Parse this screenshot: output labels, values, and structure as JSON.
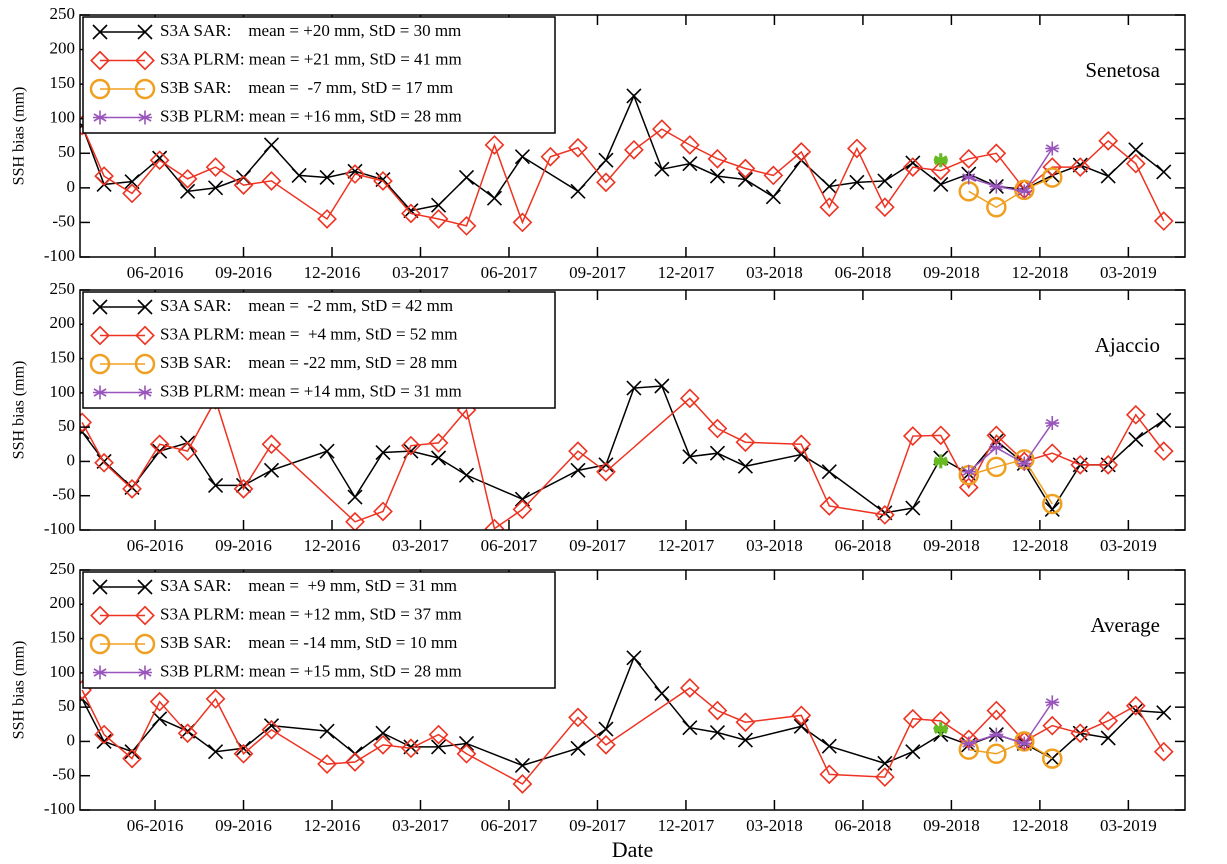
{
  "chart_data": [
    {
      "type": "line",
      "title": "Senetosa",
      "ylabel": "SSH bias (mm)",
      "xlim": [
        2016.205,
        2019.327
      ],
      "ylim": [
        -100,
        250
      ],
      "xticks": [
        {
          "value": 2016.417,
          "label": "06-2016"
        },
        {
          "value": 2016.667,
          "label": "09-2016"
        },
        {
          "value": 2016.917,
          "label": "12-2016"
        },
        {
          "value": 2017.167,
          "label": "03-2017"
        },
        {
          "value": 2017.417,
          "label": "06-2017"
        },
        {
          "value": 2017.667,
          "label": "09-2017"
        },
        {
          "value": 2017.917,
          "label": "12-2017"
        },
        {
          "value": 2018.167,
          "label": "03-2018"
        },
        {
          "value": 2018.417,
          "label": "06-2018"
        },
        {
          "value": 2018.667,
          "label": "09-2018"
        },
        {
          "value": 2018.917,
          "label": "12-2018"
        },
        {
          "value": 2019.167,
          "label": "03-2019"
        }
      ],
      "yticks": [
        -100,
        -50,
        0,
        50,
        100,
        150,
        200,
        250
      ],
      "series": [
        {
          "name": "S3A SAR:    mean = +20 mm, StD = 30 mm",
          "color": "#000000",
          "marker": "cross",
          "x": [
            2016.211,
            2016.273,
            2016.352,
            2016.43,
            2016.509,
            2016.588,
            2016.667,
            2016.746,
            2016.824,
            2016.903,
            2016.982,
            2017.061,
            2017.14,
            2017.218,
            2017.297,
            2017.376,
            2017.455,
            2017.612,
            2017.691,
            2017.77,
            2017.849,
            2017.928,
            2018.006,
            2018.085,
            2018.164,
            2018.243,
            2018.322,
            2018.4,
            2018.479,
            2018.558,
            2018.637,
            2018.716,
            2018.794,
            2018.873,
            2018.952,
            2019.031,
            2019.11,
            2019.188,
            2019.267
          ],
          "values": [
            90,
            5,
            9,
            43,
            -5,
            0,
            15,
            62,
            18,
            15,
            24,
            12,
            -33,
            -25,
            15,
            -15,
            45,
            -5,
            40,
            133,
            27,
            35,
            17,
            12,
            -13,
            40,
            2,
            8,
            10,
            36,
            5,
            20,
            2,
            -2,
            18,
            33,
            17,
            55,
            23
          ]
        },
        {
          "name": "S3A PLRM: mean = +21 mm, StD = 41 mm",
          "color": "#ee3322",
          "marker": "diamond",
          "x": [
            2016.211,
            2016.273,
            2016.352,
            2016.43,
            2016.509,
            2016.588,
            2016.667,
            2016.746,
            2016.903,
            2016.982,
            2017.061,
            2017.14,
            2017.218,
            2017.297,
            2017.376,
            2017.455,
            2017.534,
            2017.612,
            2017.691,
            2017.77,
            2017.849,
            2017.928,
            2018.006,
            2018.085,
            2018.164,
            2018.243,
            2018.322,
            2018.4,
            2018.479,
            2018.558,
            2018.637,
            2018.716,
            2018.794,
            2018.873,
            2018.952,
            2019.031,
            2019.11,
            2019.188,
            2019.267
          ],
          "values": [
            90,
            17,
            -8,
            40,
            13,
            30,
            4,
            10,
            -45,
            20,
            10,
            -37,
            -45,
            -55,
            62,
            -50,
            45,
            58,
            8,
            55,
            85,
            62,
            42,
            28,
            18,
            52,
            -28,
            57,
            -28,
            30,
            25,
            42,
            50,
            -2,
            30,
            30,
            68,
            35,
            -48
          ]
        },
        {
          "name": "S3B SAR:    mean =  -7 mm, StD = 17 mm",
          "color": "#f0a020",
          "marker": "circle",
          "x": [
            2018.716,
            2018.794,
            2018.873,
            2018.952
          ],
          "values": [
            -5,
            -28,
            -3,
            15
          ]
        },
        {
          "name": "S3B PLRM: mean = +16 mm, StD = 28 mm",
          "color": "#9955bb",
          "marker": "star",
          "x": [
            2018.716,
            2018.794,
            2018.873,
            2018.952
          ],
          "values": [
            15,
            2,
            -5,
            57
          ]
        },
        {
          "color": "#66bb22",
          "marker": "star",
          "x": [
            2018.637
          ],
          "values": [
            40
          ]
        }
      ]
    },
    {
      "type": "line",
      "title": "Ajaccio",
      "ylabel": "SSH bias (mm)",
      "xlim": [
        2016.205,
        2019.327
      ],
      "ylim": [
        -100,
        250
      ],
      "xticks": [
        {
          "value": 2016.417,
          "label": "06-2016"
        },
        {
          "value": 2016.667,
          "label": "09-2016"
        },
        {
          "value": 2016.917,
          "label": "12-2016"
        },
        {
          "value": 2017.167,
          "label": "03-2017"
        },
        {
          "value": 2017.417,
          "label": "06-2017"
        },
        {
          "value": 2017.667,
          "label": "09-2017"
        },
        {
          "value": 2017.917,
          "label": "12-2017"
        },
        {
          "value": 2018.167,
          "label": "03-2018"
        },
        {
          "value": 2018.417,
          "label": "06-2018"
        },
        {
          "value": 2018.667,
          "label": "09-2018"
        },
        {
          "value": 2018.917,
          "label": "12-2018"
        },
        {
          "value": 2019.167,
          "label": "03-2019"
        }
      ],
      "yticks": [
        -100,
        -50,
        0,
        50,
        100,
        150,
        200,
        250
      ],
      "series": [
        {
          "name": "S3A SAR:    mean =  -2 mm, StD = 42 mm",
          "color": "#000000",
          "marker": "cross",
          "x": [
            2016.211,
            2016.273,
            2016.352,
            2016.43,
            2016.509,
            2016.588,
            2016.667,
            2016.746,
            2016.903,
            2016.982,
            2017.061,
            2017.14,
            2017.218,
            2017.297,
            2017.455,
            2017.612,
            2017.691,
            2017.77,
            2017.849,
            2017.928,
            2018.006,
            2018.085,
            2018.243,
            2018.322,
            2018.479,
            2018.558,
            2018.637,
            2018.716,
            2018.794,
            2018.873,
            2018.952,
            2019.031,
            2019.11,
            2019.188,
            2019.267
          ],
          "values": [
            43,
            0,
            -38,
            15,
            27,
            -35,
            -35,
            -13,
            15,
            -52,
            13,
            15,
            5,
            -20,
            -55,
            -13,
            -5,
            107,
            110,
            7,
            12,
            -7,
            10,
            -15,
            -75,
            -68,
            5,
            -18,
            30,
            -3,
            -70,
            -5,
            -5,
            32,
            60
          ]
        },
        {
          "name": "S3A PLRM: mean =  +4 mm, StD = 52 mm",
          "color": "#ee3322",
          "marker": "diamond",
          "x": [
            2016.211,
            2016.273,
            2016.352,
            2016.43,
            2016.509,
            2016.588,
            2016.667,
            2016.746,
            2016.982,
            2017.061,
            2017.14,
            2017.218,
            2017.297,
            2017.376,
            2017.455,
            2017.612,
            2017.691,
            2017.928,
            2018.006,
            2018.085,
            2018.243,
            2018.322,
            2018.479,
            2018.558,
            2018.637,
            2018.716,
            2018.794,
            2018.873,
            2018.952,
            2019.031,
            2019.11,
            2019.188,
            2019.267
          ],
          "values": [
            57,
            -2,
            -40,
            25,
            15,
            90,
            -40,
            25,
            -88,
            -73,
            23,
            27,
            75,
            -98,
            -70,
            15,
            -15,
            92,
            48,
            28,
            25,
            -65,
            -78,
            37,
            38,
            -38,
            38,
            0,
            12,
            -5,
            -5,
            68,
            15
          ]
        },
        {
          "name": "S3B SAR:    mean = -22 mm, StD = 28 mm",
          "color": "#f0a020",
          "marker": "circle",
          "x": [
            2018.716,
            2018.794,
            2018.873,
            2018.952
          ],
          "values": [
            -20,
            -8,
            3,
            -62
          ]
        },
        {
          "name": "S3B PLRM: mean = +14 mm, StD = 31 mm",
          "color": "#9955bb",
          "marker": "star",
          "x": [
            2018.716,
            2018.794,
            2018.873,
            2018.952
          ],
          "values": [
            -15,
            20,
            -3,
            56
          ]
        },
        {
          "color": "#66bb22",
          "marker": "star",
          "x": [
            2018.637
          ],
          "values": [
            0
          ]
        }
      ]
    },
    {
      "type": "line",
      "title": "Average",
      "ylabel": "SSH bias (mm)",
      "xlabel": "Date",
      "xlim": [
        2016.205,
        2019.327
      ],
      "ylim": [
        -100,
        250
      ],
      "xticks": [
        {
          "value": 2016.417,
          "label": "06-2016"
        },
        {
          "value": 2016.667,
          "label": "09-2016"
        },
        {
          "value": 2016.917,
          "label": "12-2016"
        },
        {
          "value": 2017.167,
          "label": "03-2017"
        },
        {
          "value": 2017.417,
          "label": "06-2017"
        },
        {
          "value": 2017.667,
          "label": "09-2017"
        },
        {
          "value": 2017.917,
          "label": "12-2017"
        },
        {
          "value": 2018.167,
          "label": "03-2018"
        },
        {
          "value": 2018.417,
          "label": "06-2018"
        },
        {
          "value": 2018.667,
          "label": "09-2018"
        },
        {
          "value": 2018.917,
          "label": "12-2018"
        },
        {
          "value": 2019.167,
          "label": "03-2019"
        }
      ],
      "yticks": [
        -100,
        -50,
        0,
        50,
        100,
        150,
        200,
        250
      ],
      "series": [
        {
          "name": "S3A SAR:    mean =  +9 mm, StD = 31 mm",
          "color": "#000000",
          "marker": "cross",
          "x": [
            2016.211,
            2016.273,
            2016.352,
            2016.43,
            2016.509,
            2016.588,
            2016.667,
            2016.746,
            2016.903,
            2016.982,
            2017.061,
            2017.14,
            2017.218,
            2017.297,
            2017.455,
            2017.612,
            2017.691,
            2017.77,
            2017.849,
            2017.928,
            2018.006,
            2018.085,
            2018.243,
            2018.322,
            2018.479,
            2018.558,
            2018.637,
            2018.716,
            2018.794,
            2018.873,
            2018.952,
            2019.031,
            2019.11,
            2019.188,
            2019.267
          ],
          "values": [
            62,
            0,
            -15,
            33,
            15,
            -15,
            -10,
            23,
            15,
            -18,
            12,
            -8,
            -8,
            -3,
            -35,
            -10,
            18,
            122,
            70,
            20,
            13,
            2,
            22,
            -7,
            -32,
            -15,
            10,
            -5,
            10,
            -3,
            -25,
            12,
            5,
            45,
            42
          ]
        },
        {
          "name": "S3A PLRM: mean = +12 mm, StD = 37 mm",
          "color": "#ee3322",
          "marker": "diamond",
          "x": [
            2016.211,
            2016.273,
            2016.352,
            2016.43,
            2016.509,
            2016.588,
            2016.667,
            2016.746,
            2016.903,
            2016.982,
            2017.061,
            2017.14,
            2017.218,
            2017.297,
            2017.455,
            2017.612,
            2017.691,
            2017.928,
            2018.006,
            2018.085,
            2018.243,
            2018.322,
            2018.479,
            2018.558,
            2018.637,
            2018.716,
            2018.794,
            2018.873,
            2018.952,
            2019.031,
            2019.11,
            2019.188,
            2019.267
          ],
          "values": [
            75,
            10,
            -25,
            58,
            12,
            62,
            -18,
            17,
            -33,
            -30,
            -5,
            -10,
            10,
            -18,
            -62,
            35,
            -5,
            78,
            45,
            28,
            38,
            -48,
            -52,
            33,
            30,
            3,
            45,
            0,
            23,
            12,
            30,
            52,
            -15
          ]
        },
        {
          "name": "S3B SAR:    mean = -14 mm, StD = 10 mm",
          "color": "#f0a020",
          "marker": "circle",
          "x": [
            2018.716,
            2018.794,
            2018.873,
            2018.952
          ],
          "values": [
            -12,
            -18,
            0,
            -25
          ]
        },
        {
          "name": "S3B PLRM: mean = +15 mm, StD = 28 mm",
          "color": "#9955bb",
          "marker": "star",
          "x": [
            2018.716,
            2018.794,
            2018.873,
            2018.952
          ],
          "values": [
            -3,
            10,
            -3,
            57
          ]
        },
        {
          "color": "#66bb22",
          "marker": "star",
          "x": [
            2018.637
          ],
          "values": [
            18
          ]
        }
      ]
    }
  ]
}
